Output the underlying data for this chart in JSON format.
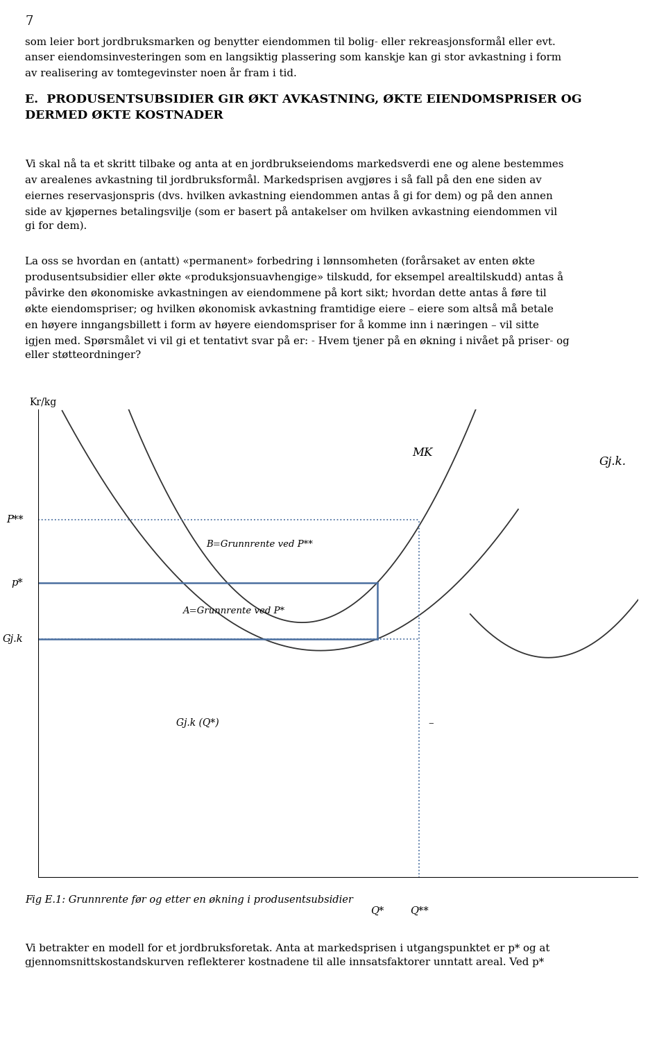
{
  "page_number": "7",
  "para1": "som leier bort jordbruksmarken og benytter eiendommen til bolig- eller rekreasjonsformål eller evt.",
  "para2": "anser eiendomsinvesteringen som en langsiktig plassering som kanskje kan gi stor avkastning i form\nav realisering av tomtegevinster noen år fram i tid.",
  "heading": "E.  PRODUSENTSUBSIDIER GIR ØKT AVKASTNING, ØKTE EIENDOMSPRISER OG\nDERMED ØKTE KOSTNADER",
  "para3": "Vi skal nå ta et skritt tilbake og anta at en jordbrukseiendoms markedsverdi ene og alene bestemmes\nav arealenes avkastning til jordbruksformål. Markedsprisen avgjøres i så fall på den ene siden av\neiernes reservasjonspris (dvs. hvilken avkastning eiendommen antas å gi for dem) og på den annen\nside av kjøpernes betalingsvilje (som er basert på antakelser om hvilken avkastning eiendommen vil\ngi for dem).",
  "para4": "La oss se hvordan en (antatt) «permanent» forbedring i lønnsomheten (forårsaket av enten økte\nprodusentsubsidier eller økte «produksjonsuavhengige» tilskudd, for eksempel arealtilskudd) antas å\npåvirke den økonomiske avkastningen av eiendommene på kort sikt; hvordan dette antas å føre til\nøkte eiendomspriser; og hvilken økonomisk avkastning framtidige eiere – eiere som altså må betale\nen høyere inngangsbillett i form av høyere eiendomspriser for å komme inn i næringen – vil sitte\nigjen med. Spørsmålet vi vil gi et tentativt svar på er: - Hvem tjener på en økning i nivået på priser- og\neller støtteordninger?",
  "caption": "Fig E.1: Grunnrente før og etter en økning i produsentsubsidier",
  "para5": "Vi betrakter en modell for et jordbruksforetak. Anta at markedsprisen i utgangspunktet er p* og at\ngjennomsnittskostandskurven reflekterer kostnadene til alle innsatsfaktorer unntatt areal. Ved p*",
  "curve_color": "#333333",
  "blue": "#4a6fa0",
  "p_star": 6.3,
  "p_starstar": 7.65,
  "gjk_level": 5.1,
  "q_star": 5.65,
  "q_starstar": 6.35,
  "qmin_mk": 4.4,
  "ymin_mk": 5.45,
  "qmin_gjk": 4.7,
  "ymin_gjk": 4.85,
  "qmin_gjk2": 8.5,
  "ymin_gjk2": 4.7,
  "b_gjk2": 0.55,
  "xmin": 0,
  "xmax": 10,
  "ymin": 0,
  "ymax": 10
}
